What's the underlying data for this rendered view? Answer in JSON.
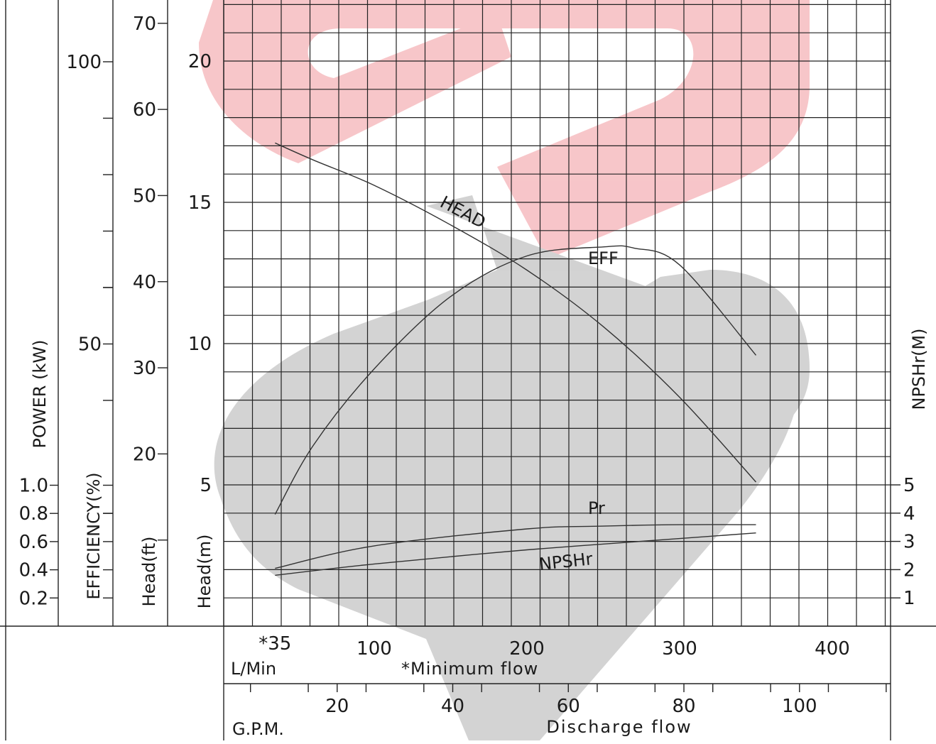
{
  "chart_data": {
    "type": "line",
    "title": "",
    "axes": {
      "power": {
        "label": "POWER (kW)",
        "ticks": [
          "0.2",
          "0.4",
          "0.6",
          "0.8",
          "1.0"
        ]
      },
      "efficiency": {
        "label": "EFFICIENCY(%)",
        "ticks": [
          "50",
          "100"
        ]
      },
      "head_ft": {
        "label": "Head(ft)",
        "ticks": [
          "20",
          "30",
          "40",
          "50",
          "60",
          "70"
        ]
      },
      "head_m": {
        "label": "Head(m)",
        "ticks": [
          "5",
          "10",
          "15",
          "20"
        ],
        "range": [
          0,
          20
        ]
      },
      "npshr": {
        "label": "NPSHr(M)",
        "ticks": [
          "1",
          "2",
          "3",
          "4",
          "5"
        ]
      },
      "flow_lpm": {
        "label": "L/Min",
        "ticks": [
          "*35",
          "100",
          "200",
          "300",
          "400"
        ]
      },
      "flow_gpm": {
        "label": "G.P.M.",
        "ticks": [
          "20",
          "40",
          "60",
          "80",
          "100"
        ]
      }
    },
    "minimum_flow_note": "*Minimum flow",
    "discharge_label": "Discharge flow",
    "x_unit": "L/Min",
    "series": [
      {
        "name": "HEAD",
        "unit": "m",
        "x": [
          35,
          60,
          100,
          150,
          200,
          250,
          300,
          350
        ],
        "y": [
          17.1,
          16.5,
          15.6,
          14.2,
          12.6,
          10.6,
          8.1,
          5.1
        ]
      },
      {
        "name": "EFF",
        "unit": "%",
        "x": [
          35,
          60,
          100,
          150,
          200,
          250,
          270,
          300,
          350
        ],
        "y": [
          19.8,
          32,
          45.6,
          58.4,
          65.6,
          67.2,
          67,
          64,
          48
        ]
      },
      {
        "name": "Pr",
        "unit": "kW",
        "x": [
          35,
          100,
          200,
          250,
          300,
          350
        ],
        "y": [
          0.41,
          0.57,
          0.69,
          0.71,
          0.72,
          0.72
        ]
      },
      {
        "name": "NPSHr",
        "unit": "m",
        "x": [
          35,
          100,
          200,
          300,
          350
        ],
        "y": [
          1.8,
          2.2,
          2.7,
          3.1,
          3.3
        ]
      }
    ],
    "grid": true,
    "watermark": {
      "colors": [
        "#f4b8bc",
        "#c7c7c7"
      ]
    }
  }
}
